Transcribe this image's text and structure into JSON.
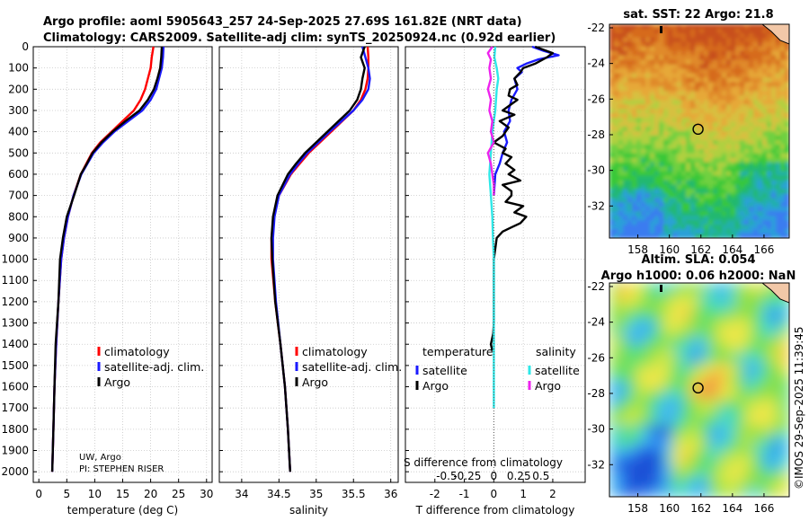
{
  "header": {
    "line1": "Argo profile: aoml 5905643_257 24-Sep-2025 27.69S 161.82E (NRT data)",
    "line2": "Climatology: CARS2009. Satellite-adj clim: synTS_20250924.nc (0.92d earlier)"
  },
  "credits": {
    "org": "UW, Argo",
    "pi": "PI: STEPHEN RISER"
  },
  "watermark": "©IMOS 29-Sep-2025 11:39:45",
  "depth_axis": {
    "ylim": [
      2050,
      0
    ],
    "ticks": [
      0,
      100,
      200,
      300,
      400,
      500,
      600,
      700,
      800,
      900,
      1000,
      1100,
      1200,
      1300,
      1400,
      1500,
      1600,
      1700,
      1800,
      1900,
      2000
    ]
  },
  "colors": {
    "argo": "#000000",
    "climatology": "#ff0000",
    "satellite": "#1a1aff",
    "temp_diff_sat": "#1a1aff",
    "sal_diff_sat": "#2ee8e8",
    "sal_diff_argo": "#ee22ee",
    "grid": "#c8c8c8",
    "marker": "#000000"
  },
  "chart_data": [
    {
      "type": "line",
      "id": "temperature",
      "xlabel": "temperature (deg C)",
      "xlim": [
        -1,
        31
      ],
      "xticks": [
        0,
        5,
        10,
        15,
        20,
        25,
        30
      ],
      "depth": [
        0,
        50,
        100,
        150,
        200,
        250,
        300,
        350,
        400,
        450,
        500,
        550,
        600,
        700,
        800,
        900,
        1000,
        1200,
        1400,
        1600,
        1800,
        2000
      ],
      "legend": [
        "climatology",
        "satellite-adj. clim.",
        "Argo"
      ],
      "series": [
        {
          "name": "climatology",
          "color_key": "climatology",
          "values": [
            20.5,
            20.2,
            20.0,
            19.5,
            19.0,
            18.2,
            17.0,
            15.0,
            13.0,
            11.0,
            9.5,
            8.5,
            7.5,
            6.2,
            5.2,
            4.5,
            4.0,
            3.5,
            3.1,
            2.8,
            2.6,
            2.4
          ]
        },
        {
          "name": "satellite-adj. clim.",
          "color_key": "satellite",
          "values": [
            22.3,
            22.2,
            22.0,
            21.5,
            21.0,
            20.0,
            18.5,
            16.0,
            13.5,
            11.5,
            9.8,
            8.7,
            7.6,
            6.2,
            5.2,
            4.5,
            4.0,
            3.5,
            3.1,
            2.8,
            2.6,
            2.4
          ]
        },
        {
          "name": "Argo",
          "color_key": "argo",
          "values": [
            22.0,
            21.9,
            21.7,
            21.2,
            20.6,
            19.5,
            18.0,
            15.5,
            13.2,
            11.2,
            9.6,
            8.6,
            7.5,
            6.3,
            5.0,
            4.3,
            3.8,
            3.5,
            3.0,
            2.8,
            2.6,
            2.4
          ]
        }
      ]
    },
    {
      "type": "line",
      "id": "salinity",
      "xlabel": "salinity",
      "xlim": [
        33.7,
        36.1
      ],
      "xticks": [
        34,
        34.5,
        35,
        35.5,
        36
      ],
      "xtick_labels": [
        "34",
        "34.5",
        "35",
        "35.5",
        "36"
      ],
      "depth": [
        0,
        50,
        100,
        150,
        200,
        250,
        300,
        350,
        400,
        450,
        500,
        550,
        600,
        700,
        800,
        900,
        1000,
        1200,
        1400,
        1600,
        1800,
        2000
      ],
      "legend": [
        "climatology",
        "satellite-adj. clim.",
        "Argo"
      ],
      "series": [
        {
          "name": "climatology",
          "color_key": "climatology",
          "values": [
            35.69,
            35.7,
            35.7,
            35.69,
            35.66,
            35.6,
            35.5,
            35.35,
            35.2,
            35.05,
            34.9,
            34.78,
            34.66,
            34.5,
            34.43,
            34.4,
            34.4,
            34.45,
            34.52,
            34.58,
            34.62,
            34.65
          ]
        },
        {
          "name": "satellite-adj. clim.",
          "color_key": "satellite",
          "values": [
            35.62,
            35.66,
            35.7,
            35.72,
            35.7,
            35.62,
            35.5,
            35.34,
            35.18,
            35.03,
            34.88,
            34.76,
            34.65,
            34.5,
            34.44,
            34.42,
            34.42,
            34.46,
            34.52,
            34.58,
            34.62,
            34.65
          ]
        },
        {
          "name": "Argo",
          "color_key": "argo",
          "values": [
            35.65,
            35.6,
            35.65,
            35.62,
            35.6,
            35.55,
            35.45,
            35.3,
            35.15,
            35.0,
            34.85,
            34.73,
            34.62,
            34.48,
            34.42,
            34.4,
            34.41,
            34.45,
            34.52,
            34.58,
            34.62,
            34.65
          ]
        }
      ]
    },
    {
      "type": "line",
      "id": "differences",
      "xlabel": "T difference from climatology",
      "xlim": [
        -3,
        3.1
      ],
      "xticks": [
        -2,
        -1,
        0,
        1,
        2
      ],
      "sal_axis_title": "S difference from climatology",
      "sal_xticks": [
        "-0.5",
        "-0.25",
        "0",
        "0.25",
        "0.5"
      ],
      "sal_xticks_pos": [
        -1.6,
        -0.9,
        0,
        0.85,
        1.6
      ],
      "legend_headers": [
        "temperature",
        "salinity"
      ],
      "legend_left": [
        "satellite",
        "Argo"
      ],
      "legend_right": [
        "satellite",
        "Argo"
      ],
      "series": [
        {
          "name": "T satellite",
          "color_key": "temp_diff_sat",
          "depth": [
            0,
            20,
            40,
            60,
            80,
            100,
            120,
            150,
            200,
            250,
            300,
            350,
            400,
            450,
            500,
            550,
            600,
            700
          ],
          "values": [
            1.3,
            1.7,
            2.2,
            1.5,
            1.1,
            0.8,
            0.95,
            0.7,
            0.8,
            0.6,
            0.5,
            0.55,
            0.35,
            0.45,
            0.3,
            0.2,
            0.05,
            0.0
          ]
        },
        {
          "name": "T Argo",
          "color_key": "argo",
          "depth": [
            0,
            30,
            50,
            80,
            100,
            120,
            150,
            180,
            200,
            230,
            250,
            270,
            300,
            320,
            350,
            380,
            400,
            420,
            450,
            480,
            500,
            520,
            550,
            580,
            600,
            630,
            650,
            680,
            700,
            730,
            750,
            780,
            800,
            830,
            850,
            870,
            900,
            950,
            1000,
            1100,
            1200,
            1300,
            1350,
            1400,
            1430
          ],
          "values": [
            1.4,
            2.0,
            1.8,
            1.4,
            1.0,
            0.9,
            0.7,
            0.8,
            0.55,
            0.5,
            0.8,
            0.6,
            0.3,
            0.7,
            0.2,
            0.5,
            0.4,
            0.3,
            0.0,
            0.4,
            0.3,
            0.6,
            0.4,
            0.7,
            0.5,
            0.9,
            0.3,
            0.6,
            0.6,
            0.4,
            1.0,
            0.7,
            1.1,
            0.9,
            0.6,
            0.3,
            0.1,
            0.05,
            0.0,
            0.0,
            0.0,
            0.0,
            -0.02,
            -0.1,
            -0.05
          ]
        },
        {
          "name": "S satellite",
          "color_key": "sal_diff_sat",
          "depth": [
            0,
            50,
            100,
            150,
            200,
            300,
            400,
            500,
            600,
            700,
            800,
            900,
            1000,
            1200,
            1400,
            1600,
            1700
          ],
          "values": [
            0.05,
            0.02,
            0.1,
            0.15,
            0.1,
            0.05,
            -0.05,
            -0.1,
            -0.15,
            -0.1,
            -0.05,
            -0.03,
            0.0,
            0.0,
            0.0,
            0.0,
            0.0
          ]
        },
        {
          "name": "S Argo",
          "color_key": "sal_diff_argo",
          "depth": [
            0,
            30,
            60,
            100,
            150,
            200,
            250,
            300,
            350,
            400,
            450,
            500,
            550,
            600,
            650,
            700
          ],
          "values": [
            -0.05,
            -0.2,
            -0.1,
            -0.15,
            -0.1,
            -0.2,
            -0.1,
            -0.15,
            -0.05,
            -0.1,
            0.0,
            -0.2,
            -0.1,
            -0.05,
            0.0,
            0.0
          ]
        }
      ]
    },
    {
      "type": "heatmap",
      "id": "sst",
      "title": "sat. SST: 22 Argo: 21.8",
      "xlim": [
        156.2,
        167.6
      ],
      "ylim": [
        -33.8,
        -21.8
      ],
      "xticks": [
        158,
        160,
        162,
        164,
        166
      ],
      "yticks": [
        -22,
        -24,
        -26,
        -28,
        -30,
        -32
      ],
      "marker": [
        161.82,
        -27.69
      ]
    },
    {
      "type": "heatmap",
      "id": "sla",
      "title_line1": "Altim. SLA: 0.054",
      "title_line2": "Argo h1000: 0.06 h2000: NaN",
      "xlim": [
        156.2,
        167.6
      ],
      "ylim": [
        -33.8,
        -21.8
      ],
      "xticks": [
        158,
        160,
        162,
        164,
        166
      ],
      "yticks": [
        -22,
        -24,
        -26,
        -28,
        -30,
        -32
      ],
      "marker": [
        161.82,
        -27.69
      ]
    }
  ]
}
